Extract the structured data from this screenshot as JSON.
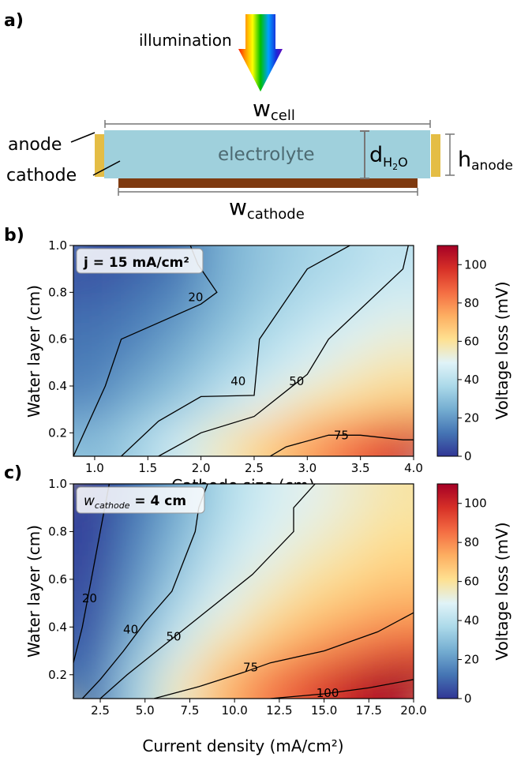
{
  "panel_a": {
    "label": "a)",
    "illumination": "illumination",
    "w_cell": "w",
    "w_cell_sub": "cell",
    "electrolyte": "electrolyte",
    "d_h2o": "d",
    "d_sub_a": "H",
    "d_sub_b": "2",
    "d_sub_c": "O",
    "h_anode": "h",
    "h_anode_sub": "anode",
    "anode": "anode",
    "cathode": "cathode",
    "w_cathode": "w",
    "w_cathode_sub": "cathode"
  },
  "colors": {
    "electrolyte": "#9fd0dc",
    "anode": "#e4bd45",
    "cathode": "#7f3a10",
    "rainbow": [
      "#ff0000",
      "#ff8c00",
      "#ffff00",
      "#00c000",
      "#00a0ff",
      "#1a2bd8",
      "#7a00b5"
    ],
    "colormap": [
      "#313695",
      "#4575b4",
      "#74add1",
      "#abd9e9",
      "#e0f3f8",
      "#fee090",
      "#fdae61",
      "#f46d43",
      "#d73027",
      "#a50026"
    ]
  },
  "chart_data": [
    {
      "type": "heatmap",
      "panel": "b)",
      "annotation": "j = 15 mA/cm²",
      "xlabel": "Cathode size (cm)",
      "ylabel": "Water layer (cm)",
      "xlim": [
        0.8,
        4.0
      ],
      "ylim": [
        0.1,
        1.0
      ],
      "xticks": [
        "1.0",
        "1.5",
        "2.0",
        "2.5",
        "3.0",
        "3.5",
        "4.0"
      ],
      "xtick_values": [
        1.0,
        1.5,
        2.0,
        2.5,
        3.0,
        3.5,
        4.0
      ],
      "yticks": [
        "0.2",
        "0.4",
        "0.6",
        "0.8",
        "1.0"
      ],
      "ytick_values": [
        0.2,
        0.4,
        0.6,
        0.8,
        1.0
      ],
      "colorbar": {
        "label": "Voltage loss (mV)",
        "range": [
          0,
          110
        ],
        "ticks": [
          "0",
          "20",
          "40",
          "60",
          "80",
          "100"
        ],
        "tick_values": [
          0,
          20,
          40,
          60,
          80,
          100
        ]
      },
      "z": [
        [
          28,
          35,
          45,
          55,
          65,
          75,
          85,
          95
        ],
        [
          18,
          26,
          33,
          42,
          50,
          58,
          62,
          66
        ],
        [
          14,
          20,
          27,
          35,
          42,
          48,
          54,
          58
        ],
        [
          12,
          15,
          22,
          30,
          37,
          43,
          48,
          52
        ],
        [
          9,
          12,
          17,
          26,
          33,
          38,
          42,
          46
        ],
        [
          5,
          8,
          12,
          25,
          31,
          35,
          38,
          42
        ]
      ],
      "contours": [
        {
          "level": "20",
          "points": [
            [
              0.8,
              0.1
            ],
            [
              1.1,
              0.4
            ],
            [
              1.25,
              0.6
            ],
            [
              2.0,
              0.75
            ],
            [
              2.15,
              0.8
            ],
            [
              1.97,
              0.92
            ],
            [
              1.9,
              1.0
            ]
          ],
          "label_at": [
            1.95,
            0.78
          ]
        },
        {
          "level": "40",
          "points": [
            [
              1.25,
              0.1
            ],
            [
              1.6,
              0.25
            ],
            [
              2.0,
              0.355
            ],
            [
              2.5,
              0.36
            ],
            [
              2.55,
              0.6
            ],
            [
              3.0,
              0.9
            ],
            [
              3.4,
              1.0
            ]
          ],
          "label_at": [
            2.35,
            0.42
          ]
        },
        {
          "level": "50",
          "points": [
            [
              1.6,
              0.1
            ],
            [
              2.0,
              0.2
            ],
            [
              2.5,
              0.27
            ],
            [
              3.0,
              0.45
            ],
            [
              3.2,
              0.6
            ],
            [
              3.9,
              0.9
            ],
            [
              3.95,
              1.0
            ]
          ],
          "label_at": [
            2.9,
            0.42
          ]
        },
        {
          "level": "75",
          "points": [
            [
              2.65,
              0.1
            ],
            [
              2.8,
              0.14
            ],
            [
              3.2,
              0.19
            ],
            [
              3.5,
              0.19
            ],
            [
              3.9,
              0.17
            ],
            [
              4.0,
              0.17
            ]
          ],
          "label_at": [
            3.32,
            0.19
          ]
        }
      ]
    },
    {
      "type": "heatmap",
      "panel": "c)",
      "annotation_italic": "w",
      "annotation_sub": "cathode",
      "annotation_rest": " = 4 cm",
      "xlabel": "Current density (mA/cm²)",
      "ylabel": "Water layer (cm)",
      "xlim": [
        1.0,
        20.0
      ],
      "ylim": [
        0.1,
        1.0
      ],
      "xticks": [
        "2.5",
        "5.0",
        "7.5",
        "10.0",
        "12.5",
        "15.0",
        "17.5",
        "20.0"
      ],
      "xtick_values": [
        2.5,
        5.0,
        7.5,
        10.0,
        12.5,
        15.0,
        17.5,
        20.0
      ],
      "yticks": [
        "0.2",
        "0.4",
        "0.6",
        "0.8",
        "1.0"
      ],
      "ytick_values": [
        0.2,
        0.4,
        0.6,
        0.8,
        1.0
      ],
      "colorbar": {
        "label": "Voltage loss (mV)",
        "range": [
          0,
          110
        ],
        "ticks": [
          "0",
          "20",
          "40",
          "60",
          "80",
          "100"
        ],
        "tick_values": [
          0,
          20,
          40,
          60,
          80,
          100
        ]
      },
      "z": [
        [
          12,
          35,
          55,
          70,
          82,
          92,
          102,
          110
        ],
        [
          8,
          28,
          45,
          58,
          68,
          76,
          82,
          88
        ],
        [
          6,
          22,
          38,
          50,
          58,
          65,
          70,
          74
        ],
        [
          4,
          18,
          32,
          44,
          52,
          58,
          62,
          66
        ],
        [
          3,
          15,
          28,
          40,
          48,
          53,
          57,
          61
        ],
        [
          2,
          12,
          24,
          37,
          45,
          50,
          54,
          58
        ]
      ],
      "contours": [
        {
          "level": "20",
          "points": [
            [
              1.0,
              0.25
            ],
            [
              1.5,
              0.4
            ],
            [
              2.0,
              0.6
            ],
            [
              2.5,
              0.8
            ],
            [
              3.0,
              1.0
            ]
          ],
          "label_at": [
            1.9,
            0.52
          ]
        },
        {
          "level": "40",
          "points": [
            [
              1.5,
              0.1
            ],
            [
              2.5,
              0.18
            ],
            [
              3.8,
              0.3
            ],
            [
              5.0,
              0.42
            ],
            [
              6.5,
              0.55
            ],
            [
              7.8,
              0.8
            ],
            [
              8.0,
              0.9
            ],
            [
              8.5,
              1.0
            ]
          ],
          "label_at": [
            4.2,
            0.39
          ]
        },
        {
          "level": "50",
          "points": [
            [
              2.5,
              0.1
            ],
            [
              4.0,
              0.2
            ],
            [
              6.5,
              0.35
            ],
            [
              9.0,
              0.5
            ],
            [
              11.0,
              0.62
            ],
            [
              13.3,
              0.8
            ],
            [
              13.3,
              0.9
            ],
            [
              14.5,
              1.0
            ]
          ],
          "label_at": [
            6.6,
            0.36
          ]
        },
        {
          "level": "75",
          "points": [
            [
              5.5,
              0.1
            ],
            [
              8.0,
              0.15
            ],
            [
              10.5,
              0.21
            ],
            [
              12.0,
              0.25
            ],
            [
              15.0,
              0.3
            ],
            [
              18.0,
              0.38
            ],
            [
              20.0,
              0.46
            ]
          ],
          "label_at": [
            10.9,
            0.23
          ]
        },
        {
          "level": "100",
          "points": [
            [
              12.0,
              0.1
            ],
            [
              15.0,
              0.12
            ],
            [
              17.5,
              0.145
            ],
            [
              20.0,
              0.18
            ]
          ],
          "label_at": [
            15.2,
            0.123
          ]
        }
      ]
    }
  ]
}
